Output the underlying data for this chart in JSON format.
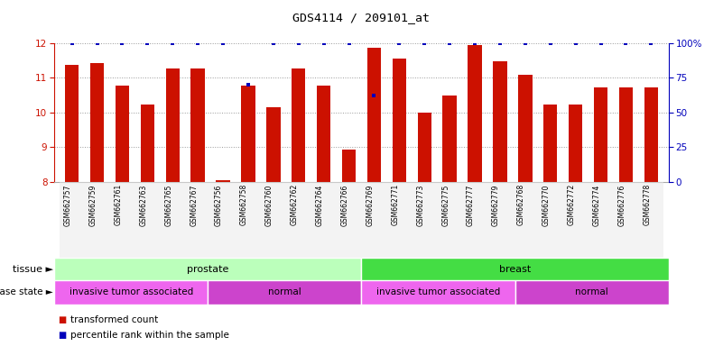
{
  "title": "GDS4114 / 209101_at",
  "samples": [
    "GSM662757",
    "GSM662759",
    "GSM662761",
    "GSM662763",
    "GSM662765",
    "GSM662767",
    "GSM662756",
    "GSM662758",
    "GSM662760",
    "GSM662762",
    "GSM662764",
    "GSM662766",
    "GSM662769",
    "GSM662771",
    "GSM662773",
    "GSM662775",
    "GSM662777",
    "GSM662779",
    "GSM662768",
    "GSM662770",
    "GSM662772",
    "GSM662774",
    "GSM662776",
    "GSM662778"
  ],
  "bar_values": [
    11.38,
    11.42,
    10.78,
    10.22,
    11.28,
    11.28,
    8.05,
    10.78,
    10.15,
    11.28,
    10.78,
    8.92,
    11.88,
    11.55,
    10.0,
    10.48,
    11.95,
    11.48,
    11.08,
    10.22,
    10.22,
    10.72,
    10.72,
    10.72
  ],
  "percentile_values": [
    100,
    100,
    100,
    100,
    100,
    100,
    100,
    70,
    100,
    100,
    100,
    100,
    62,
    100,
    100,
    100,
    100,
    100,
    100,
    100,
    100,
    100,
    100,
    100
  ],
  "bar_color": "#cc1100",
  "percentile_color": "#0000bb",
  "ylim_left": [
    8,
    12
  ],
  "ylim_right": [
    0,
    100
  ],
  "yticks_left": [
    8,
    9,
    10,
    11,
    12
  ],
  "yticks_right": [
    0,
    25,
    50,
    75,
    100
  ],
  "ytick_labels_right": [
    "0",
    "25",
    "50",
    "75",
    "100%"
  ],
  "tissue_groups": [
    {
      "label": "prostate",
      "start": 0,
      "end": 12,
      "color": "#bbffbb"
    },
    {
      "label": "breast",
      "start": 12,
      "end": 24,
      "color": "#44dd44"
    }
  ],
  "disease_groups": [
    {
      "label": "invasive tumor associated",
      "start": 0,
      "end": 6,
      "color": "#ee66ee"
    },
    {
      "label": "normal",
      "start": 6,
      "end": 12,
      "color": "#cc44cc"
    },
    {
      "label": "invasive tumor associated",
      "start": 12,
      "end": 18,
      "color": "#ee66ee"
    },
    {
      "label": "normal",
      "start": 18,
      "end": 24,
      "color": "#cc44cc"
    }
  ],
  "background_color": "#ffffff",
  "grid_color": "#999999",
  "bar_width": 0.55
}
